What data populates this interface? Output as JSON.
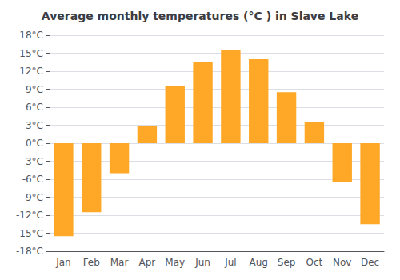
{
  "chart_data": {
    "type": "bar",
    "title": "Average monthly temperatures (°C ) in Slave Lake",
    "categories": [
      "Jan",
      "Feb",
      "Mar",
      "Apr",
      "May",
      "Jun",
      "Jul",
      "Aug",
      "Sep",
      "Oct",
      "Nov",
      "Dec"
    ],
    "values": [
      -15.5,
      -11.5,
      -5.0,
      2.8,
      9.5,
      13.5,
      15.5,
      14.0,
      8.5,
      3.5,
      -6.5,
      -13.5
    ],
    "color": "#FFA726",
    "ylim": [
      -18,
      18
    ],
    "yticks": [
      {
        "value": -18,
        "label": "-18°C"
      },
      {
        "value": -15,
        "label": "-15°C"
      },
      {
        "value": -12,
        "label": "-12°C"
      },
      {
        "value": -9,
        "label": "-9°C"
      },
      {
        "value": -6,
        "label": "-6°C"
      },
      {
        "value": -3,
        "label": "-3°C"
      },
      {
        "value": 0,
        "label": "0°C"
      },
      {
        "value": 3,
        "label": "3°C"
      },
      {
        "value": 6,
        "label": "6°C"
      },
      {
        "value": 9,
        "label": "9°C"
      },
      {
        "value": 12,
        "label": "12°C"
      },
      {
        "value": 15,
        "label": "15°C"
      },
      {
        "value": 18,
        "label": "18°C"
      }
    ],
    "grid": true
  }
}
